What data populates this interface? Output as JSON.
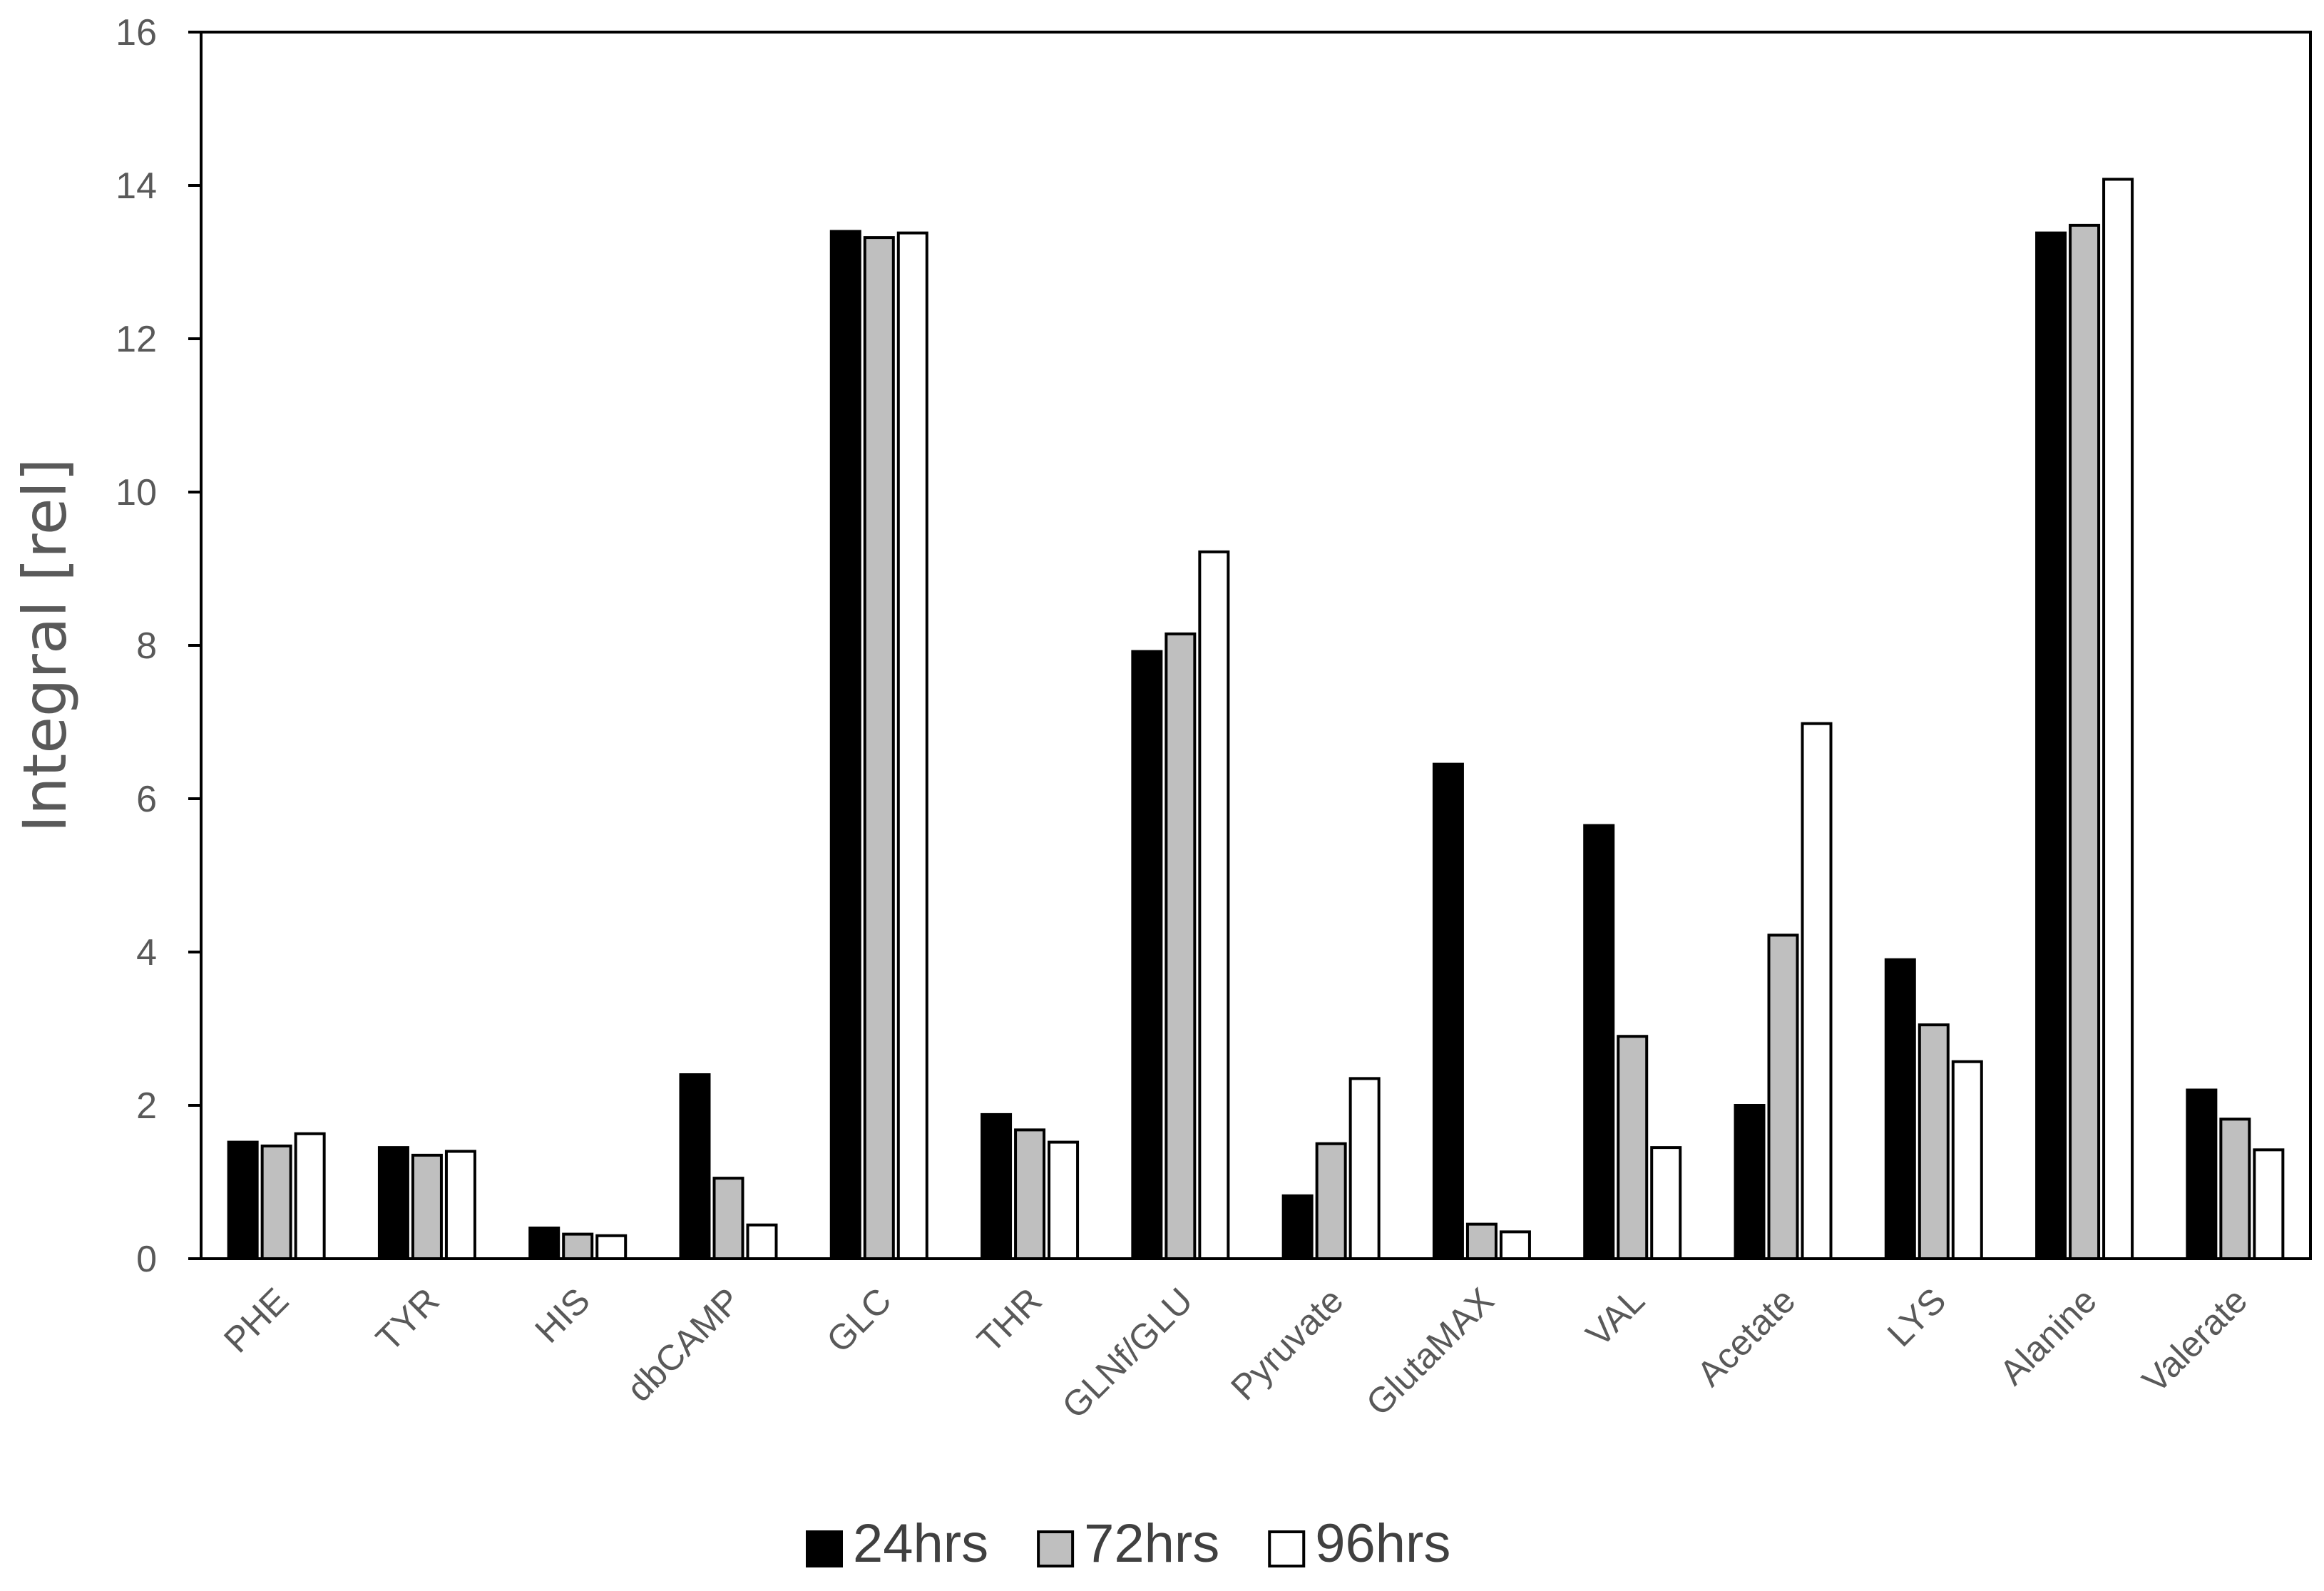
{
  "chart_data": {
    "type": "bar",
    "title": "",
    "xlabel": "",
    "ylabel": "Integral [rel]",
    "ylim": [
      0,
      16
    ],
    "yticks": [
      0,
      2,
      4,
      6,
      8,
      10,
      12,
      14,
      16
    ],
    "grid": false,
    "legend": "bottom",
    "categories": [
      "PHE",
      "TYR",
      "HIS",
      "dbCAMP",
      "GLC",
      "THR",
      "GLNf/GLU",
      "Pyruvate",
      "GlutaMAX",
      "VAL",
      "Acetate",
      "LYS",
      "Alanine",
      "Valerate"
    ],
    "series": [
      {
        "name": "24hrs",
        "color": "#000000",
        "values": [
          1.52,
          1.45,
          0.4,
          2.4,
          13.4,
          1.88,
          7.92,
          0.82,
          6.45,
          5.65,
          2.0,
          3.9,
          13.38,
          2.2
        ]
      },
      {
        "name": "72hrs",
        "color": "#bfbfbf",
        "values": [
          1.47,
          1.35,
          0.32,
          1.05,
          13.32,
          1.68,
          8.15,
          1.5,
          0.45,
          2.9,
          4.22,
          3.05,
          13.48,
          1.82
        ]
      },
      {
        "name": "96hrs",
        "color": "#ffffff",
        "values": [
          1.63,
          1.4,
          0.3,
          0.44,
          13.38,
          1.52,
          9.22,
          2.35,
          0.35,
          1.45,
          6.98,
          2.57,
          14.08,
          1.42
        ]
      }
    ]
  }
}
